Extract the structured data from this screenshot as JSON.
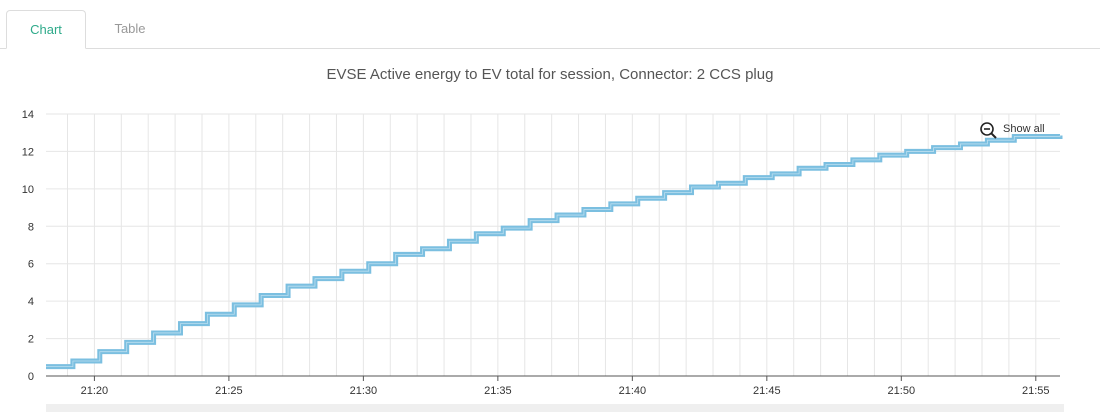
{
  "tabs": [
    {
      "label": "Chart",
      "active": true
    },
    {
      "label": "Table",
      "active": false
    }
  ],
  "zoom": {
    "label": "Show all",
    "icon": "zoom-out-icon"
  },
  "colors": {
    "series": "#7bbfe0",
    "accent": "#2eaa8a",
    "grid": "#e6e6e6"
  },
  "chart_data": {
    "type": "line",
    "title": "EVSE Active energy to EV total for session, Connector: 2 CCS plug",
    "xlabel": "",
    "ylabel": "",
    "x_tick_labels": [
      "21:20",
      "21:25",
      "21:30",
      "21:35",
      "21:40",
      "21:45",
      "21:50",
      "21:55"
    ],
    "x_tick_minutes": [
      20,
      25,
      30,
      35,
      40,
      45,
      50,
      55
    ],
    "xlim_minutes": [
      18.2,
      55.9
    ],
    "ylim": [
      0,
      14
    ],
    "y_ticks": [
      0,
      2,
      4,
      6,
      8,
      10,
      12,
      14
    ],
    "grid": true,
    "legend": "none",
    "series": [
      {
        "x_minutes": [
          18.2,
          19.2,
          20.2,
          21.2,
          22.2,
          23.2,
          24.2,
          25.2,
          26.2,
          27.2,
          28.2,
          29.2,
          30.2,
          31.2,
          32.2,
          33.2,
          34.2,
          35.2,
          36.2,
          37.2,
          38.2,
          39.2,
          40.2,
          41.2,
          42.2,
          43.2,
          44.2,
          45.2,
          46.2,
          47.2,
          48.2,
          49.2,
          50.2,
          51.2,
          52.2,
          53.2,
          54.2,
          55.9
        ],
        "values": [
          0.5,
          0.8,
          1.3,
          1.8,
          2.3,
          2.8,
          3.3,
          3.8,
          4.3,
          4.8,
          5.2,
          5.6,
          6.0,
          6.5,
          6.8,
          7.2,
          7.6,
          7.9,
          8.3,
          8.6,
          8.9,
          9.2,
          9.5,
          9.8,
          10.1,
          10.3,
          10.6,
          10.8,
          11.1,
          11.3,
          11.55,
          11.8,
          12.0,
          12.2,
          12.4,
          12.6,
          12.8,
          12.85
        ]
      }
    ]
  }
}
